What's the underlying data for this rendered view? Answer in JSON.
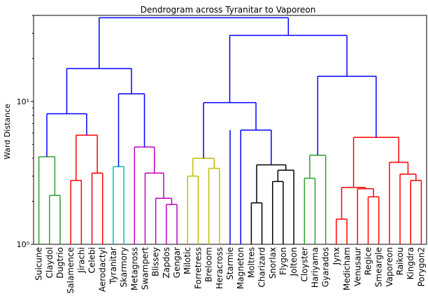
{
  "chart_data": {
    "type": "dendrogram",
    "title": "Dendrogram across Tyranitar to Vaporeon",
    "xlabel": "",
    "ylabel": "Ward Distance",
    "yscale": "log",
    "ylim": [
      1,
      40
    ],
    "yticks": [
      {
        "value": 1,
        "label": "10⁰"
      },
      {
        "value": 10,
        "label": "10¹"
      }
    ],
    "grid": false,
    "leaves": [
      "Suicune",
      "Claydol",
      "Dugtrio",
      "Salamence",
      "Jirachi",
      "Celebi",
      "Aerodactyl",
      "Tyranitar",
      "Skarmory",
      "Metagross",
      "Swampert",
      "Blissey",
      "Zapdos",
      "Gengar",
      "Milotic",
      "Forretress",
      "Breloom",
      "Heracross",
      "Starmie",
      "Magneton",
      "Moltres",
      "Charizard",
      "Snorlax",
      "Flygon",
      "Jolteon",
      "Cloyster",
      "Hariyama",
      "Gyarados",
      "Jynx",
      "Medicham",
      "Venusaur",
      "Regice",
      "Smeargle",
      "Vaporeon",
      "Raikou",
      "Kingdra",
      "Porygon2"
    ],
    "colors": {
      "green": "#2ca02c",
      "red": "#ff0000",
      "cyan": "#00bfbf",
      "magenta": "#bf00bf",
      "yellow": "#bfbf00",
      "black": "#000000",
      "blue": "#0000ff"
    },
    "links": [
      {
        "l": "L1",
        "r": "L2",
        "h": 2.2,
        "c": "green"
      },
      {
        "l": "L0",
        "r": "L1|L2",
        "h": 4.1,
        "c": "green"
      },
      {
        "l": "L3",
        "r": "L4",
        "h": 2.8,
        "c": "red"
      },
      {
        "l": "L3|L4",
        "r": "L5",
        "h": 5.8,
        "c": "red"
      },
      {
        "l": "L3|L4|L5",
        "r": "L6",
        "h": 5.8,
        "c": "red"
      },
      {
        "l": "L6",
        "r": "L5",
        "h": 3.15,
        "c": "red"
      },
      {
        "l": "L7",
        "r": "L8",
        "h": 3.5,
        "c": "cyan"
      },
      {
        "l": "L12",
        "r": "L13",
        "h": 1.9,
        "c": "magenta"
      },
      {
        "l": "L11",
        "r": "L12|L13",
        "h": 2.1,
        "c": "magenta"
      },
      {
        "l": "L10",
        "r": "L11|L12|L13",
        "h": 3.15,
        "c": "magenta"
      },
      {
        "l": "L9",
        "r": "L10|L11|L12|L13",
        "h": 4.8,
        "c": "magenta"
      },
      {
        "l": "L14",
        "r": "L15",
        "h": 3.0,
        "c": "yellow"
      },
      {
        "l": "L16",
        "r": "L17",
        "h": 3.4,
        "c": "yellow"
      },
      {
        "l": "L14|L15",
        "r": "L16|L17",
        "h": 4.0,
        "c": "yellow"
      },
      {
        "l": "L20",
        "r": "L21",
        "h": 1.95,
        "c": "black"
      },
      {
        "l": "L22",
        "r": "L23",
        "h": 2.75,
        "c": "black"
      },
      {
        "l": "L22|L23",
        "r": "L24",
        "h": 3.3,
        "c": "black"
      },
      {
        "l": "L20|L21",
        "r": "L22|L23|L24",
        "h": 3.6,
        "c": "black"
      },
      {
        "l": "L25",
        "r": "L26",
        "h": 2.9,
        "c": "green"
      },
      {
        "l": "L25|L26",
        "r": "L27",
        "h": 4.2,
        "c": "green"
      },
      {
        "l": "L28",
        "r": "L29",
        "h": 1.5,
        "c": "red"
      },
      {
        "l": "L31",
        "r": "L32",
        "h": 2.15,
        "c": "red"
      },
      {
        "l": "L30",
        "r": "L31|L32",
        "h": 2.45,
        "c": "red"
      },
      {
        "l": "L28|L29",
        "r": "L30|L31|L32",
        "h": 2.5,
        "c": "red"
      },
      {
        "l": "L35",
        "r": "L36",
        "h": 2.8,
        "c": "red"
      },
      {
        "l": "L34",
        "r": "L35|L36",
        "h": 3.1,
        "c": "red"
      },
      {
        "l": "L33",
        "r": "L34|L35|L36",
        "h": 3.75,
        "c": "red"
      },
      {
        "l": "L28-32",
        "r": "L33-36",
        "h": 5.6,
        "c": "red"
      }
    ]
  }
}
